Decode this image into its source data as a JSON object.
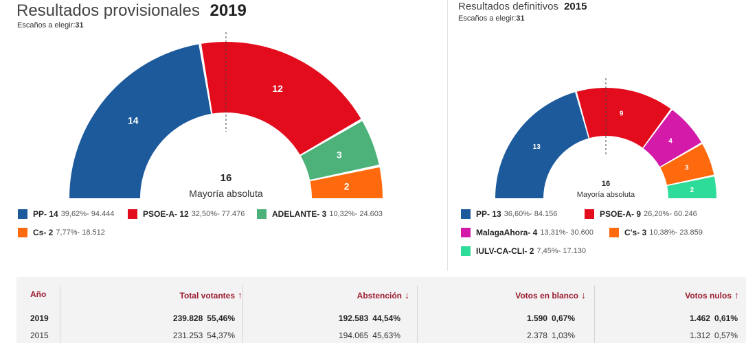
{
  "current": {
    "title_prefix": "Resultados provisionales",
    "year": "2019",
    "seats_label": "Escaños a elegir:",
    "seats_total": "31",
    "majority_value": "16",
    "majority_label": "Mayoría absoluta",
    "parties": [
      {
        "name": "PP",
        "seats": 14,
        "seats_label": "14",
        "detail": "39,62%- 94.444",
        "color": "#1c5a9c"
      },
      {
        "name": "PSOE-A",
        "seats": 12,
        "seats_label": "12",
        "detail": "32,50%- 77.476",
        "color": "#e30c1d"
      },
      {
        "name": "ADELANTE",
        "seats": 3,
        "seats_label": "3",
        "detail": "10,32%- 24.603",
        "color": "#4cb27a"
      },
      {
        "name": "Cs",
        "seats": 2,
        "seats_label": "2",
        "detail": "7,77%- 18.512",
        "color": "#ff6a0e"
      }
    ]
  },
  "previous": {
    "title_prefix": "Resultados definitivos",
    "year": "2015",
    "seats_label": "Escaños a elegir:",
    "seats_total": "31",
    "majority_value": "16",
    "majority_label": "Mayoría absoluta",
    "parties": [
      {
        "name": "PP",
        "seats": 13,
        "seats_label": "13",
        "detail": "36,60%- 84.156",
        "color": "#1c5a9c"
      },
      {
        "name": "PSOE-A",
        "seats": 9,
        "seats_label": "9",
        "detail": "26,20%- 60.246",
        "color": "#e30c1d"
      },
      {
        "name": "MalagaAhora",
        "seats": 4,
        "seats_label": "4",
        "detail": "13,31%- 30.600",
        "color": "#d31aa8"
      },
      {
        "name": "C's",
        "seats": 3,
        "seats_label": "3",
        "detail": "10,38%- 23.859",
        "color": "#ff6a0e"
      },
      {
        "name": "IULV-CA-CLI",
        "seats": 2,
        "seats_label": "2",
        "detail": "7,45%- 17.130",
        "color": "#2edc9a"
      }
    ]
  },
  "stats": {
    "headers": {
      "year": "Año",
      "total_votes": "Total votantes",
      "abstention": "Abstención",
      "blank": "Votos en blanco",
      "null": "Votos nulos"
    },
    "arrows": {
      "total_votes": "↑",
      "abstention": "↓",
      "blank": "↓",
      "null": "↑"
    },
    "rows": [
      {
        "year": "2019",
        "total_votes": "239.828",
        "total_pct": "55,46%",
        "abstention": "192.583",
        "abstention_pct": "44,54%",
        "blank": "1.590",
        "blank_pct": "0,67%",
        "null": "1.462",
        "null_pct": "0,61%"
      },
      {
        "year": "2015",
        "total_votes": "231.253",
        "total_pct": "54,37%",
        "abstention": "194.065",
        "abstention_pct": "45,63%",
        "blank": "2.378",
        "blank_pct": "1,03%",
        "null": "1.312",
        "null_pct": "0,57%"
      }
    ]
  }
}
